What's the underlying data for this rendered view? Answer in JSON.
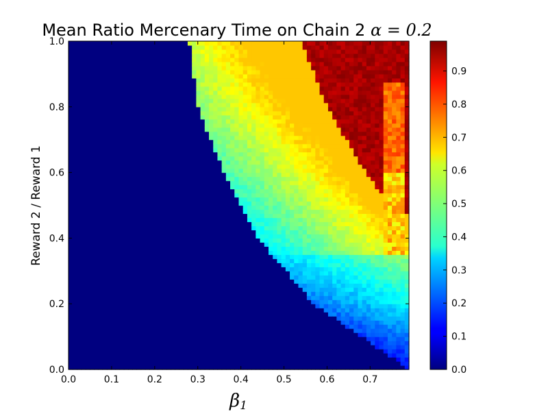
{
  "chart_data": {
    "type": "heatmap",
    "title": "Mean Ratio Mercenary Time on Chain 2 ",
    "title_math": "α = 0.2",
    "xlabel": "β",
    "xlabel_sub": "1",
    "ylabel": "Reward 2 / Reward 1",
    "xlim": [
      0.0,
      0.79
    ],
    "ylim": [
      0.0,
      1.0
    ],
    "x_ticks": [
      "0.0",
      "0.1",
      "0.2",
      "0.3",
      "0.4",
      "0.5",
      "0.6",
      "0.7"
    ],
    "y_ticks": [
      "0.0",
      "0.2",
      "0.4",
      "0.6",
      "0.8",
      "1.0"
    ],
    "colorbar": {
      "colormap": "jet",
      "range": [
        0.0,
        0.99
      ],
      "ticks": [
        "0.0",
        "0.1",
        "0.2",
        "0.3",
        "0.4",
        "0.5",
        "0.6",
        "0.7",
        "0.8",
        "0.9"
      ]
    },
    "grid": false,
    "regions": [
      {
        "name": "zero",
        "value": 0.0,
        "boundary_left_x": [
          [
            1.0,
            0.28
          ],
          [
            0.8,
            0.3
          ],
          [
            0.6,
            0.36
          ],
          [
            0.4,
            0.44
          ],
          [
            0.2,
            0.57
          ],
          [
            0.0,
            0.79
          ]
        ]
      },
      {
        "name": "mid",
        "value_range": [
          0.3,
          0.6
        ]
      },
      {
        "name": "high",
        "value": 0.97,
        "boundary_left_x": [
          [
            1.0,
            0.54
          ],
          [
            0.8,
            0.6
          ],
          [
            0.6,
            0.69
          ],
          [
            0.48,
            0.76
          ]
        ]
      },
      {
        "name": "orange-streak",
        "x_range": [
          0.73,
          0.78
        ],
        "y_range": [
          0.35,
          0.88
        ],
        "value": 0.75
      }
    ]
  }
}
